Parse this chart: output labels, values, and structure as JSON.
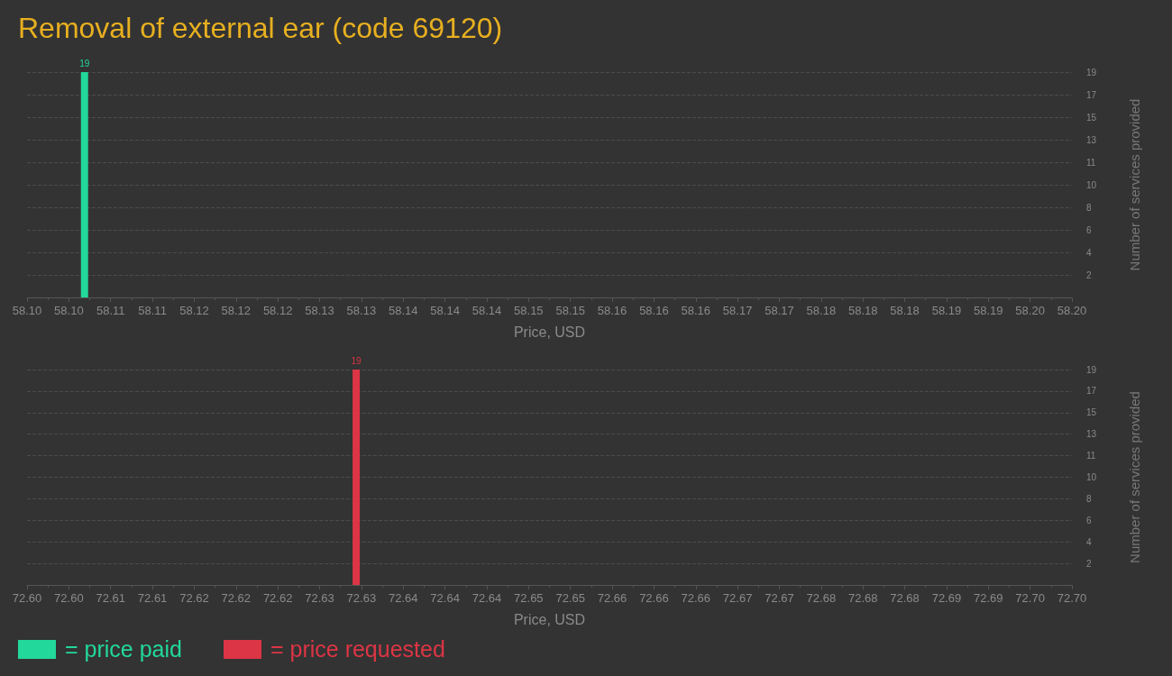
{
  "chart_data": [
    {
      "type": "bar",
      "title": "Removal of external ear (code 69120)",
      "xlabel": "Price, USD",
      "ylabel": "Number of services provided",
      "x": [
        58.1055
      ],
      "series": [
        {
          "name": "= price paid",
          "color": "#22d89b",
          "values": [
            19
          ]
        }
      ],
      "xlim": [
        58.1,
        58.2
      ],
      "xticks": [
        {
          "value": 58.1,
          "label": "58.10"
        },
        {
          "value": 58.102,
          "label": null
        },
        {
          "value": 58.104,
          "label": "58.10"
        },
        {
          "value": 58.106,
          "label": null
        },
        {
          "value": 58.108,
          "label": "58.11"
        },
        {
          "value": 58.11,
          "label": null
        },
        {
          "value": 58.112,
          "label": "58.11"
        },
        {
          "value": 58.114,
          "label": null
        },
        {
          "value": 58.116,
          "label": "58.12"
        },
        {
          "value": 58.118,
          "label": null
        },
        {
          "value": 58.12,
          "label": "58.12"
        },
        {
          "value": 58.122,
          "label": null
        },
        {
          "value": 58.124,
          "label": "58.12"
        },
        {
          "value": 58.126,
          "label": null
        },
        {
          "value": 58.128,
          "label": "58.13"
        },
        {
          "value": 58.13,
          "label": null
        },
        {
          "value": 58.132,
          "label": "58.13"
        },
        {
          "value": 58.134,
          "label": null
        },
        {
          "value": 58.136,
          "label": "58.14"
        },
        {
          "value": 58.138,
          "label": null
        },
        {
          "value": 58.14,
          "label": "58.14"
        },
        {
          "value": 58.142,
          "label": null
        },
        {
          "value": 58.144,
          "label": "58.14"
        },
        {
          "value": 58.146,
          "label": null
        },
        {
          "value": 58.148,
          "label": "58.15"
        },
        {
          "value": 58.15,
          "label": null
        },
        {
          "value": 58.152,
          "label": "58.15"
        },
        {
          "value": 58.154,
          "label": null
        },
        {
          "value": 58.156,
          "label": "58.16"
        },
        {
          "value": 58.158,
          "label": null
        },
        {
          "value": 58.16,
          "label": "58.16"
        },
        {
          "value": 58.162,
          "label": null
        },
        {
          "value": 58.164,
          "label": "58.16"
        },
        {
          "value": 58.166,
          "label": null
        },
        {
          "value": 58.168,
          "label": "58.17"
        },
        {
          "value": 58.17,
          "label": null
        },
        {
          "value": 58.172,
          "label": "58.17"
        },
        {
          "value": 58.174,
          "label": null
        },
        {
          "value": 58.176,
          "label": "58.18"
        },
        {
          "value": 58.178,
          "label": null
        },
        {
          "value": 58.18,
          "label": "58.18"
        },
        {
          "value": 58.182,
          "label": null
        },
        {
          "value": 58.184,
          "label": "58.18"
        },
        {
          "value": 58.186,
          "label": null
        },
        {
          "value": 58.188,
          "label": "58.19"
        },
        {
          "value": 58.19,
          "label": null
        },
        {
          "value": 58.192,
          "label": "58.19"
        },
        {
          "value": 58.194,
          "label": null
        },
        {
          "value": 58.196,
          "label": "58.20"
        },
        {
          "value": 58.198,
          "label": null
        },
        {
          "value": 58.2,
          "label": "58.20"
        }
      ],
      "ylim": [
        0,
        19
      ],
      "yticks": [
        {
          "value": 1.9,
          "label": "2"
        },
        {
          "value": 3.8,
          "label": "4"
        },
        {
          "value": 5.7,
          "label": "6"
        },
        {
          "value": 7.6,
          "label": "8"
        },
        {
          "value": 9.5,
          "label": "10"
        },
        {
          "value": 11.4,
          "label": "11"
        },
        {
          "value": 13.3,
          "label": "13"
        },
        {
          "value": 15.2,
          "label": "15"
        },
        {
          "value": 17.1,
          "label": "17"
        },
        {
          "value": 19,
          "label": "19"
        }
      ],
      "grid": "y",
      "data_labels": true,
      "legend": "bottom left"
    },
    {
      "type": "bar",
      "xlabel": "Price, USD",
      "ylabel": "Number of services provided",
      "x": [
        72.6315
      ],
      "series": [
        {
          "name": "= price requested",
          "color": "#dc3545",
          "values": [
            19
          ]
        }
      ],
      "xlim": [
        72.6,
        72.7
      ],
      "xticks": [
        {
          "value": 72.6,
          "label": "72.60"
        },
        {
          "value": 72.602,
          "label": null
        },
        {
          "value": 72.604,
          "label": "72.60"
        },
        {
          "value": 72.606,
          "label": null
        },
        {
          "value": 72.608,
          "label": "72.61"
        },
        {
          "value": 72.61,
          "label": null
        },
        {
          "value": 72.612,
          "label": "72.61"
        },
        {
          "value": 72.614,
          "label": null
        },
        {
          "value": 72.616,
          "label": "72.62"
        },
        {
          "value": 72.618,
          "label": null
        },
        {
          "value": 72.62,
          "label": "72.62"
        },
        {
          "value": 72.622,
          "label": null
        },
        {
          "value": 72.624,
          "label": "72.62"
        },
        {
          "value": 72.626,
          "label": null
        },
        {
          "value": 72.628,
          "label": "72.63"
        },
        {
          "value": 72.63,
          "label": null
        },
        {
          "value": 72.632,
          "label": "72.63"
        },
        {
          "value": 72.634,
          "label": null
        },
        {
          "value": 72.636,
          "label": "72.64"
        },
        {
          "value": 72.638,
          "label": null
        },
        {
          "value": 72.64,
          "label": "72.64"
        },
        {
          "value": 72.642,
          "label": null
        },
        {
          "value": 72.644,
          "label": "72.64"
        },
        {
          "value": 72.646,
          "label": null
        },
        {
          "value": 72.648,
          "label": "72.65"
        },
        {
          "value": 72.65,
          "label": null
        },
        {
          "value": 72.652,
          "label": "72.65"
        },
        {
          "value": 72.654,
          "label": null
        },
        {
          "value": 72.656,
          "label": "72.66"
        },
        {
          "value": 72.658,
          "label": null
        },
        {
          "value": 72.66,
          "label": "72.66"
        },
        {
          "value": 72.662,
          "label": null
        },
        {
          "value": 72.664,
          "label": "72.66"
        },
        {
          "value": 72.666,
          "label": null
        },
        {
          "value": 72.668,
          "label": "72.67"
        },
        {
          "value": 72.67,
          "label": null
        },
        {
          "value": 72.672,
          "label": "72.67"
        },
        {
          "value": 72.674,
          "label": null
        },
        {
          "value": 72.676,
          "label": "72.68"
        },
        {
          "value": 72.678,
          "label": null
        },
        {
          "value": 72.68,
          "label": "72.68"
        },
        {
          "value": 72.682,
          "label": null
        },
        {
          "value": 72.684,
          "label": "72.68"
        },
        {
          "value": 72.686,
          "label": null
        },
        {
          "value": 72.688,
          "label": "72.69"
        },
        {
          "value": 72.69,
          "label": null
        },
        {
          "value": 72.692,
          "label": "72.69"
        },
        {
          "value": 72.694,
          "label": null
        },
        {
          "value": 72.696,
          "label": "72.70"
        },
        {
          "value": 72.698,
          "label": null
        },
        {
          "value": 72.7,
          "label": "72.70"
        }
      ],
      "ylim": [
        0,
        19
      ],
      "yticks": [
        {
          "value": 1.9,
          "label": "2"
        },
        {
          "value": 3.8,
          "label": "4"
        },
        {
          "value": 5.7,
          "label": "6"
        },
        {
          "value": 7.6,
          "label": "8"
        },
        {
          "value": 9.5,
          "label": "10"
        },
        {
          "value": 11.4,
          "label": "11"
        },
        {
          "value": 13.3,
          "label": "13"
        },
        {
          "value": 15.2,
          "label": "15"
        },
        {
          "value": 17.1,
          "label": "17"
        },
        {
          "value": 19,
          "label": "19"
        }
      ],
      "grid": "y",
      "data_labels": true,
      "legend": "bottom left"
    }
  ]
}
